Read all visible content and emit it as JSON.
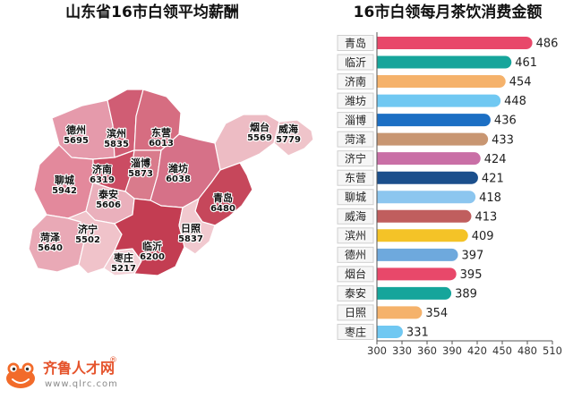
{
  "map": {
    "title": "山东省16市白领平均薪酬",
    "regions": [
      {
        "name": "德州",
        "value": 5695,
        "color": "#e59aab"
      },
      {
        "name": "滨州",
        "value": 5835,
        "color": "#d05d74"
      },
      {
        "name": "东营",
        "value": 6013,
        "color": "#d66d81"
      },
      {
        "name": "烟台",
        "value": 5569,
        "color": "#edbcc4"
      },
      {
        "name": "威海",
        "value": 5779,
        "color": "#efc4ca"
      },
      {
        "name": "聊城",
        "value": 5942,
        "color": "#e3899c"
      },
      {
        "name": "济南",
        "value": 6319,
        "color": "#cb4c63"
      },
      {
        "name": "淄博",
        "value": 5873,
        "color": "#d97b8c"
      },
      {
        "name": "潍坊",
        "value": 6038,
        "color": "#d67188"
      },
      {
        "name": "泰安",
        "value": 5606,
        "color": "#eab0bc"
      },
      {
        "name": "青岛",
        "value": 6480,
        "color": "#c6475b"
      },
      {
        "name": "菏泽",
        "value": 5640,
        "color": "#e9a9b6"
      },
      {
        "name": "济宁",
        "value": 5502,
        "color": "#f0c3ca"
      },
      {
        "name": "枣庄",
        "value": 5217,
        "color": "#f3d0d6"
      },
      {
        "name": "临沂",
        "value": 6200,
        "color": "#c33d52"
      },
      {
        "name": "日照",
        "value": 5837,
        "color": "#f1c9cf"
      }
    ]
  },
  "chart_data": {
    "type": "bar",
    "orientation": "horizontal",
    "title": "16市白领每月茶饮消费金额",
    "categories": [
      "青岛",
      "临沂",
      "济南",
      "潍坊",
      "淄博",
      "菏泽",
      "济宁",
      "东营",
      "聊城",
      "威海",
      "滨州",
      "德州",
      "烟台",
      "泰安",
      "日照",
      "枣庄"
    ],
    "values": [
      486,
      461,
      454,
      448,
      436,
      433,
      424,
      421,
      418,
      413,
      409,
      397,
      395,
      389,
      354,
      331
    ],
    "colors": [
      "#e8486a",
      "#16a59b",
      "#f5b26b",
      "#70c8f2",
      "#1c6fc4",
      "#c89672",
      "#c96fa6",
      "#1b4f8c",
      "#8cc6ef",
      "#c05e5e",
      "#f4c327",
      "#6ea9dd",
      "#e8486a",
      "#16a59b",
      "#f5b26b",
      "#70c8f2"
    ],
    "xlim": [
      300,
      510
    ],
    "xticks": [
      300,
      330,
      360,
      390,
      420,
      450,
      480,
      510
    ],
    "grid": false
  },
  "logo": {
    "name": "齐鲁人才网",
    "registered": "®",
    "url": "www.qlrc.com",
    "color": "#e5532b"
  }
}
